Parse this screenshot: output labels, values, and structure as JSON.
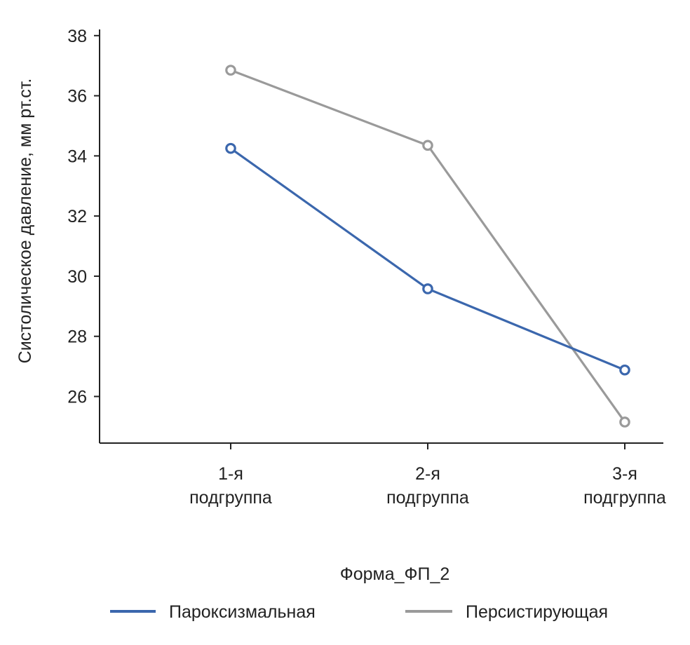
{
  "chart_data": {
    "type": "line",
    "ylabel": "Систолическое давление, мм рт.ст.",
    "legend_title": "Форма_ФП_2",
    "categories": [
      [
        "1-я",
        "подгруппа"
      ],
      [
        "2-я",
        "подгруппа"
      ],
      [
        "3-я",
        "подгруппа"
      ]
    ],
    "y_ticks": [
      26,
      28,
      30,
      32,
      34,
      36,
      38
    ],
    "ylim": [
      24.1,
      38.1
    ],
    "grid": false,
    "legend_position": "bottom",
    "series": [
      {
        "name": "Пароксизмальная",
        "color": "#3b67ad",
        "values": [
          34.25,
          29.58,
          26.88
        ]
      },
      {
        "name": "Персистирующая",
        "color": "#9a9a9a",
        "values": [
          36.85,
          34.35,
          25.15
        ]
      }
    ]
  }
}
